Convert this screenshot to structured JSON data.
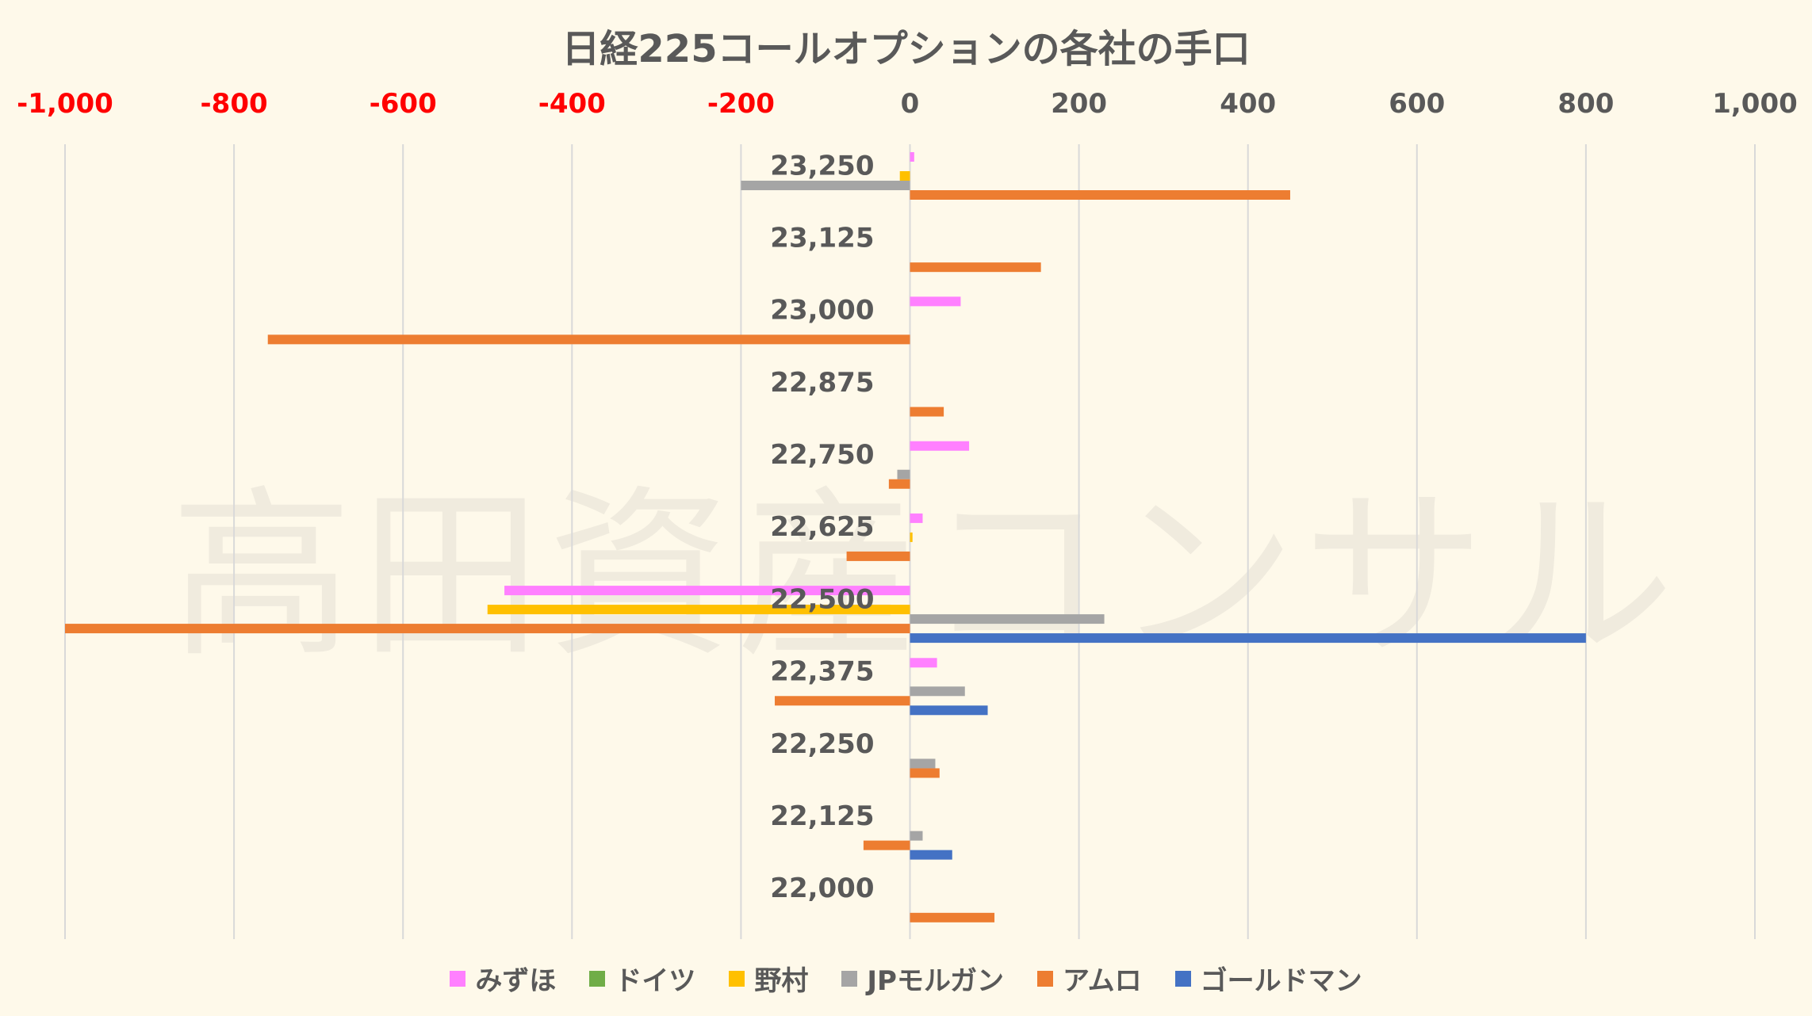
{
  "watermark": "高田資産コンサル",
  "chart_data": {
    "type": "bar",
    "orientation": "horizontal",
    "title": "日経225コールオプションの各社の手口",
    "xlim": [
      -1000,
      1000
    ],
    "x_ticks": [
      "-1,000",
      "-800",
      "-600",
      "-400",
      "-200",
      "0",
      "200",
      "400",
      "600",
      "800",
      "1,000"
    ],
    "x_tick_values": [
      -1000,
      -800,
      -600,
      -400,
      -200,
      0,
      200,
      400,
      600,
      800,
      1000
    ],
    "negative_tick_color": "#ff0000",
    "positive_tick_color": "#595959",
    "grid": "vertical",
    "legend_position": "bottom",
    "categories": [
      "23,250",
      "23,125",
      "23,000",
      "22,875",
      "22,750",
      "22,625",
      "22,500",
      "22,375",
      "22,250",
      "22,125",
      "22,000"
    ],
    "series": [
      {
        "name": "みずほ",
        "color": "#ff80ff",
        "values": [
          5,
          0,
          60,
          0,
          70,
          15,
          -480,
          32,
          0,
          0,
          0
        ]
      },
      {
        "name": "ドイツ",
        "color": "#70ad47",
        "values": [
          0,
          0,
          0,
          0,
          0,
          0,
          0,
          0,
          0,
          0,
          0
        ]
      },
      {
        "name": "野村",
        "color": "#ffc000",
        "values": [
          -12,
          0,
          0,
          0,
          0,
          3,
          -500,
          0,
          0,
          0,
          0
        ]
      },
      {
        "name": "JPモルガン",
        "color": "#a5a5a5",
        "values": [
          -200,
          0,
          0,
          0,
          -15,
          0,
          230,
          65,
          30,
          15,
          0
        ]
      },
      {
        "name": "アムロ",
        "color": "#ed7d31",
        "values": [
          450,
          155,
          -760,
          40,
          -25,
          -75,
          -1000,
          -160,
          35,
          -55,
          100
        ]
      },
      {
        "name": "ゴールドマン",
        "color": "#4472c4",
        "values": [
          0,
          0,
          0,
          0,
          0,
          0,
          800,
          92,
          0,
          50,
          0
        ]
      }
    ]
  }
}
